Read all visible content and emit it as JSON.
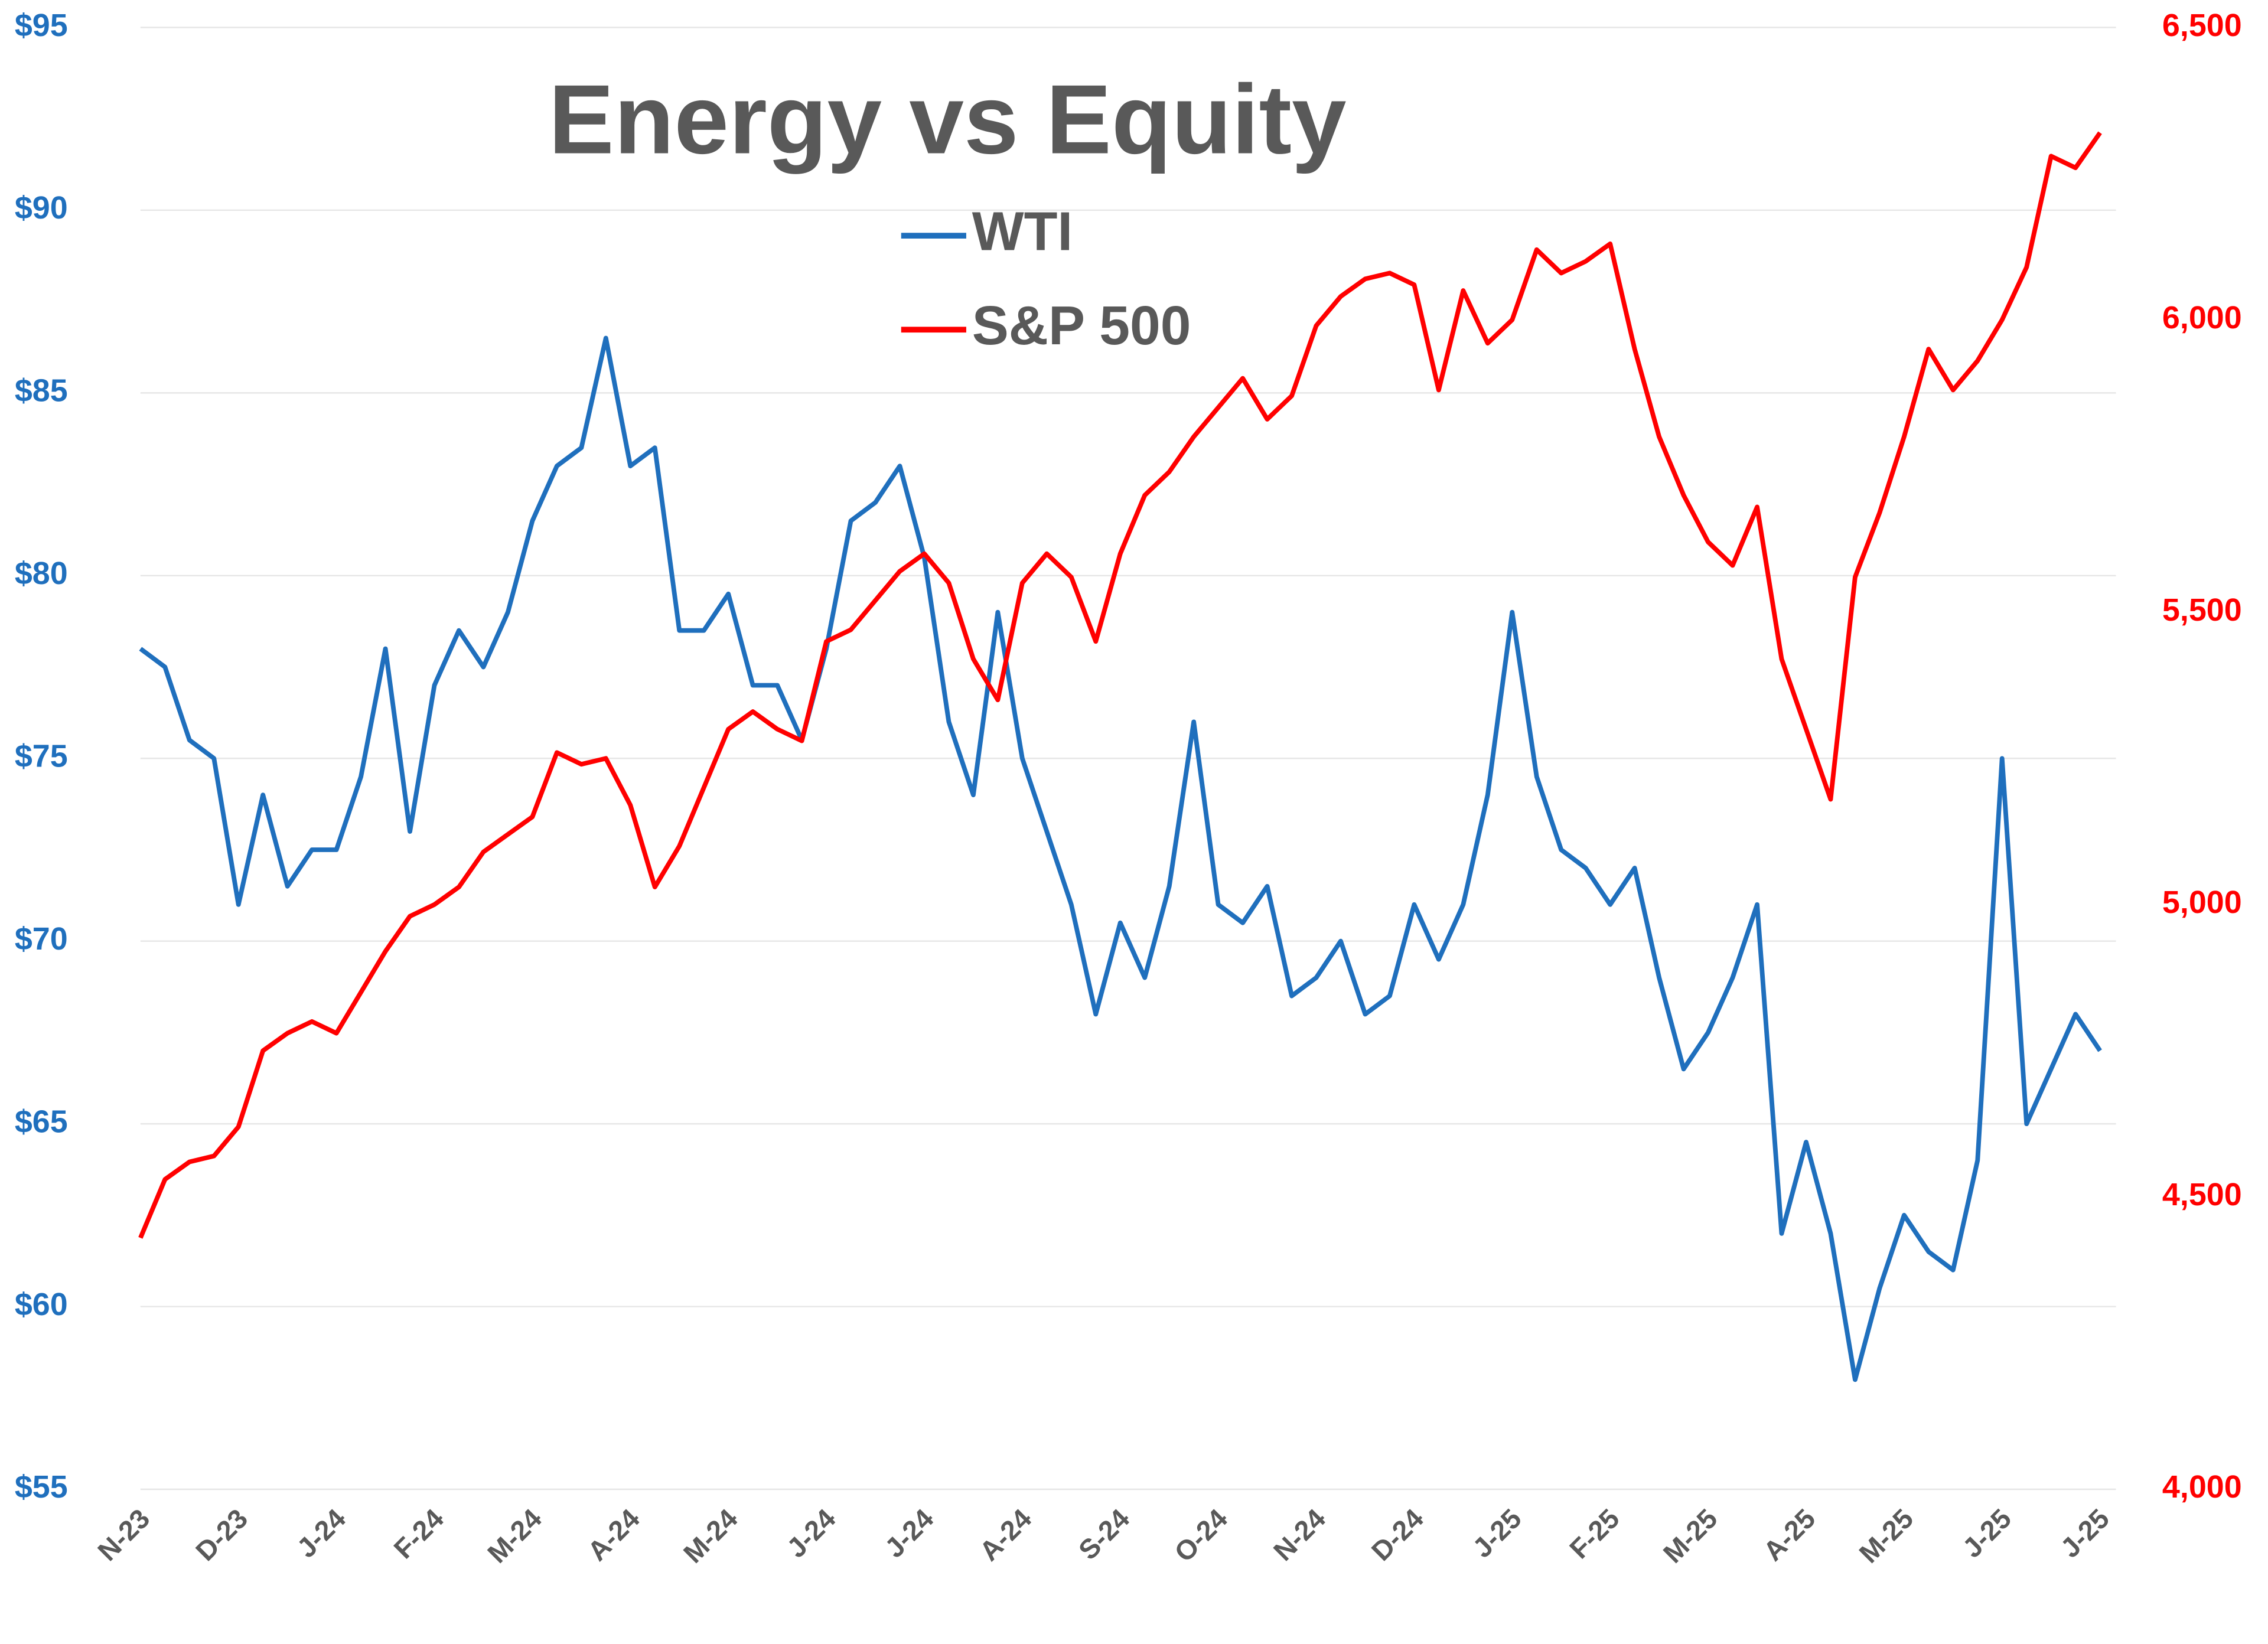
{
  "chart_data": {
    "type": "line",
    "title": "Energy vs Equity",
    "legend": "top",
    "grid": true,
    "categories": [
      "N-23",
      null,
      null,
      null,
      "D-23",
      null,
      null,
      null,
      "J-24",
      null,
      null,
      null,
      "F-24",
      null,
      null,
      null,
      "M-24",
      null,
      null,
      null,
      "A-24",
      null,
      null,
      null,
      "M-24",
      null,
      null,
      null,
      "J-24",
      null,
      null,
      null,
      "J-24",
      null,
      null,
      null,
      "A-24",
      null,
      null,
      null,
      "S-24",
      null,
      null,
      null,
      "O-24",
      null,
      null,
      null,
      "N-24",
      null,
      null,
      null,
      "D-24",
      null,
      null,
      null,
      "J-25",
      null,
      null,
      null,
      "F-25",
      null,
      null,
      null,
      "M-25",
      null,
      null,
      null,
      "A-25",
      null,
      null,
      null,
      "M-25",
      null,
      null,
      null,
      "J-25",
      null,
      null,
      null,
      "J-25"
    ],
    "series": [
      {
        "name": "WTI",
        "color": "#1f6fbd",
        "axis": "y",
        "values": [
          78,
          77.5,
          75.5,
          75,
          71,
          74,
          71.5,
          72.5,
          72.5,
          74.5,
          78,
          73,
          77,
          78.5,
          77.5,
          79,
          81.5,
          83,
          83.5,
          86.5,
          83,
          83.5,
          78.5,
          78.5,
          79.5,
          77,
          77,
          75.5,
          78,
          81.5,
          82,
          83,
          80.5,
          76,
          74,
          79,
          75,
          73,
          71,
          68,
          70.5,
          69,
          71.5,
          76,
          71,
          70.5,
          71.5,
          68.5,
          69,
          70,
          68,
          68.5,
          71,
          69.5,
          71,
          74,
          79,
          74.5,
          72.5,
          72,
          71,
          72,
          69,
          66.5,
          67.5,
          69,
          71,
          62,
          64.5,
          62,
          58,
          60.5,
          62.5,
          61.5,
          61,
          64,
          75,
          65,
          66.5,
          68,
          67
        ]
      },
      {
        "name": "S&P 500",
        "color": "#ff0000",
        "axis": "y2",
        "values": [
          4430,
          4530,
          4560,
          4570,
          4620,
          4750,
          4780,
          4800,
          4780,
          4850,
          4920,
          4980,
          5000,
          5030,
          5090,
          5120,
          5150,
          5260,
          5240,
          5250,
          5170,
          5030,
          5100,
          5200,
          5300,
          5330,
          5300,
          5280,
          5450,
          5470,
          5520,
          5570,
          5600,
          5550,
          5420,
          5350,
          5550,
          5600,
          5560,
          5450,
          5600,
          5700,
          5740,
          5800,
          5850,
          5900,
          5830,
          5870,
          5990,
          6040,
          6070,
          6080,
          6060,
          5880,
          6050,
          5960,
          6000,
          6120,
          6080,
          6100,
          6130,
          5950,
          5800,
          5700,
          5620,
          5580,
          5680,
          5420,
          5300,
          5180,
          5560,
          5670,
          5800,
          5950,
          5880,
          5930,
          6000,
          6090,
          6280,
          6260,
          6320
        ]
      }
    ],
    "ylim": [
      55,
      95
    ],
    "yticks": [
      {
        "value": 55,
        "label": "$55"
      },
      {
        "value": 60,
        "label": "$60"
      },
      {
        "value": 65,
        "label": "$65"
      },
      {
        "value": 70,
        "label": "$70"
      },
      {
        "value": 75,
        "label": "$75"
      },
      {
        "value": 80,
        "label": "$80"
      },
      {
        "value": 85,
        "label": "$85"
      },
      {
        "value": 90,
        "label": "$90"
      },
      {
        "value": 95,
        "label": "$95"
      }
    ],
    "y2lim": [
      4000,
      6500
    ],
    "y2ticks": [
      {
        "value": 4000,
        "label": "4,000"
      },
      {
        "value": 4500,
        "label": "4,500"
      },
      {
        "value": 5000,
        "label": "5,000"
      },
      {
        "value": 5500,
        "label": "5,500"
      },
      {
        "value": 6000,
        "label": "6,000"
      },
      {
        "value": 6500,
        "label": "6,500"
      }
    ]
  }
}
